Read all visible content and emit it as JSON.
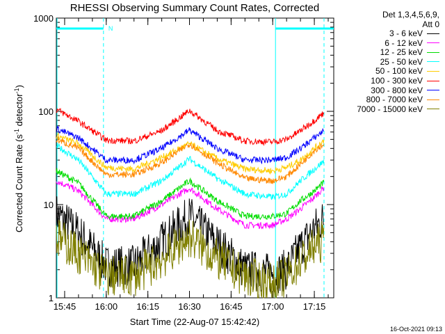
{
  "chart_data": {
    "type": "line",
    "title": "RHESSI Observing Summary Count Rates, Corrected",
    "xlabel": "Start Time (22-Aug-07 15:42:42)",
    "ylabel_main": "Corrected Count Rate (s",
    "ylabel_sup1": "-1",
    "ylabel_mid": " detector",
    "ylabel_sup2": "-1",
    "ylabel_end": ")",
    "y_scale": "log",
    "ylim": [
      1,
      1000
    ],
    "x_range": [
      "15:42",
      "17:22"
    ],
    "y_ticks": [
      {
        "value": 1,
        "label": "1"
      },
      {
        "value": 10,
        "label": "10"
      },
      {
        "value": 100,
        "label": "100"
      },
      {
        "value": 1000,
        "label": "1000"
      }
    ],
    "x_ticks": [
      {
        "value": "15:45",
        "label": "15:45"
      },
      {
        "value": "16:00",
        "label": "16:00"
      },
      {
        "value": "16:15",
        "label": "16:15"
      },
      {
        "value": "16:30",
        "label": "16:30"
      },
      {
        "value": "16:45",
        "label": "16:45"
      },
      {
        "value": "17:00",
        "label": "17:00"
      },
      {
        "value": "17:15",
        "label": "17:15"
      }
    ],
    "x": [
      "15:42",
      "15:50",
      "16:00",
      "16:10",
      "16:20",
      "16:30",
      "16:40",
      "16:50",
      "17:00",
      "17:05",
      "17:10",
      "17:15",
      "17:20"
    ],
    "series": [
      {
        "name": "3 - 6 keV",
        "color": "#000000",
        "values": [
          8,
          5,
          2.2,
          2.2,
          4,
          7.5,
          3.8,
          2,
          1.8,
          2,
          3.5,
          5.5,
          8
        ]
      },
      {
        "name": "6 - 12 keV",
        "color": "#ff00ff",
        "values": [
          18,
          14,
          7,
          7,
          10,
          15,
          9,
          6,
          6,
          7,
          9,
          12,
          17
        ]
      },
      {
        "name": "12 - 25 keV",
        "color": "#00dd00",
        "values": [
          23,
          17,
          7.5,
          7.5,
          11,
          18,
          11,
          7.5,
          7.5,
          8,
          11,
          14,
          19
        ]
      },
      {
        "name": "25 - 50 keV",
        "color": "#00ffff",
        "values": [
          43,
          30,
          13,
          13,
          18,
          31,
          19,
          13,
          12,
          13,
          18,
          24,
          32
        ]
      },
      {
        "name": "50 - 100 keV",
        "color": "#ffcc00",
        "values": [
          55,
          45,
          25,
          24,
          32,
          45,
          31,
          24,
          23,
          25,
          30,
          40,
          53
        ]
      },
      {
        "name": "100 - 300 keV",
        "color": "#ff0000",
        "values": [
          105,
          78,
          49,
          48,
          62,
          102,
          62,
          48,
          47,
          50,
          62,
          80,
          105
        ]
      },
      {
        "name": "300 - 800 keV",
        "color": "#0000ff",
        "values": [
          65,
          52,
          30,
          30,
          40,
          63,
          40,
          30,
          30,
          32,
          40,
          52,
          68
        ]
      },
      {
        "name": "800 - 7000 keV",
        "color": "#ff8800",
        "values": [
          50,
          40,
          21,
          21,
          28,
          45,
          28,
          19,
          18,
          20,
          27,
          38,
          48
        ]
      },
      {
        "name": "7000 - 15000 keV",
        "color": "#808000",
        "values": [
          4.5,
          3,
          1.7,
          1.7,
          2.6,
          4.5,
          2.6,
          1.7,
          1.4,
          1.7,
          2.5,
          3.5,
          4.5
        ]
      }
    ],
    "night_intervals": [
      [
        "15:42",
        "15:59"
      ],
      [
        "17:01",
        "17:22"
      ]
    ],
    "night_bar_color": "#00ffff",
    "flag_label": "N"
  },
  "legend": {
    "header_line1": "Det 1,3,4,5,6,9,",
    "header_line2": "Att 0"
  },
  "timestamp": "16-Oct-2021 09:13"
}
